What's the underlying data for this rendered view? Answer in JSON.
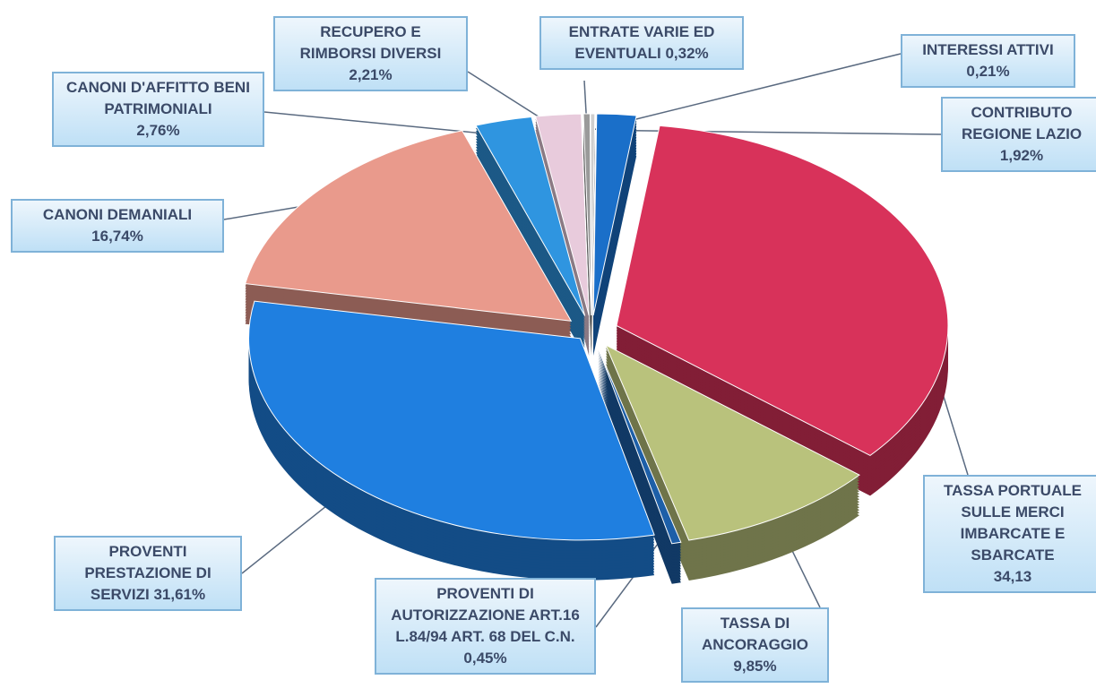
{
  "chart_data": {
    "type": "pie3d",
    "categories": [
      "CONTRIBUTO REGIONE LAZIO",
      "TASSA PORTUALE SULLE MERCI IMBARCATE E SBARCATE",
      "TASSA DI ANCORAGGIO",
      "PROVENTI DI AUTORIZZAZIONE ART.16 L.84/94 ART. 68 DEL C.N.",
      "PROVENTI PRESTAZIONE DI SERVIZI",
      "CANONI DEMANIALI",
      "CANONI D'AFFITTO BENI PATRIMONIALI",
      "RECUPERO E RIMBORSI DIVERSI",
      "ENTRATE VARIE ED EVENTUALI",
      "INTERESSI ATTIVI"
    ],
    "values": [
      1.92,
      34.13,
      9.85,
      0.45,
      31.61,
      16.74,
      2.76,
      2.21,
      0.32,
      0.21
    ],
    "value_labels": [
      "1,92%",
      "34,13",
      "9,85%",
      "0,45%",
      "31,61%",
      "16,74%",
      "2,76%",
      "2,21%",
      "0,32%",
      "0,21%"
    ],
    "colors": [
      "#1a6fc9",
      "#d8325a",
      "#b9c27c",
      "#1d5fa8",
      "#1f7fe0",
      "#e99a8c",
      "#2f95e0",
      "#e8cbdc",
      "#9a9a9a",
      "#cfcfcf"
    ]
  }
}
